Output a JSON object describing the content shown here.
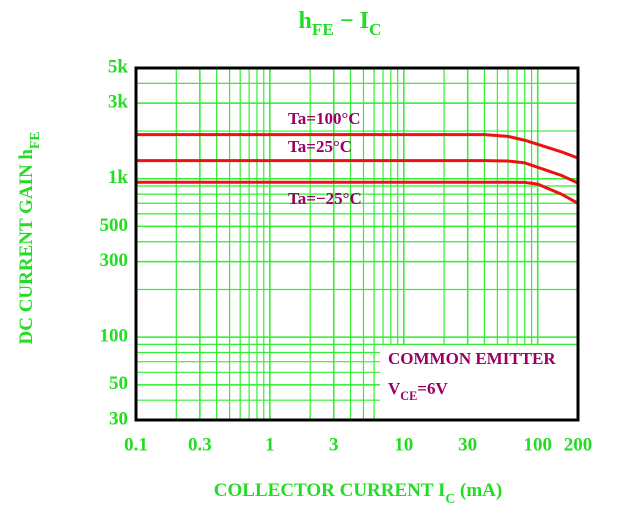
{
  "chart_data": {
    "type": "line",
    "title": [
      {
        "text": "h"
      },
      {
        "text": "FE",
        "sub": true
      },
      {
        "text": " − "
      },
      {
        "text": "I"
      },
      {
        "text": "C",
        "sub": true
      }
    ],
    "x_label": [
      {
        "text": "COLLECTOR CURRENT I"
      },
      {
        "text": "C",
        "sub": true
      },
      {
        "text": "   (mA)"
      }
    ],
    "y_label": [
      {
        "text": "DC CURRENT GAIN h"
      },
      {
        "text": "FE",
        "sub": true
      }
    ],
    "annotation": [
      [
        {
          "text": "COMMON EMITTER"
        }
      ],
      [
        {
          "text": "V"
        },
        {
          "text": "CE",
          "sub": true
        },
        {
          "text": "=6V"
        }
      ]
    ],
    "log_x": true,
    "log_y": true,
    "grid": true,
    "xlim": [
      0.1,
      200
    ],
    "ylim": [
      30,
      5000
    ],
    "xticks": [
      0.1,
      0.3,
      1,
      3,
      10,
      30,
      100,
      200
    ],
    "yticks": [
      30,
      50,
      100,
      300,
      500,
      {
        "value": 1000,
        "label": "1k"
      },
      {
        "value": 3000,
        "label": "3k"
      },
      {
        "value": 5000,
        "label": "5k"
      }
    ],
    "x": [
      0.1,
      1,
      10,
      40,
      60,
      80,
      100,
      150,
      200
    ],
    "series": [
      {
        "name": "Ta=100°C",
        "color": "#ee1111",
        "values": [
          1900,
          1900,
          1900,
          1900,
          1850,
          1750,
          1650,
          1480,
          1350
        ]
      },
      {
        "name": "Ta=25°C",
        "color": "#ee1111",
        "values": [
          1300,
          1300,
          1300,
          1300,
          1295,
          1260,
          1180,
          1050,
          940
        ]
      },
      {
        "name": "Ta=−25°C",
        "color": "#ee1111",
        "values": [
          950,
          950,
          950,
          950,
          950,
          948,
          925,
          800,
          700
        ]
      }
    ]
  }
}
